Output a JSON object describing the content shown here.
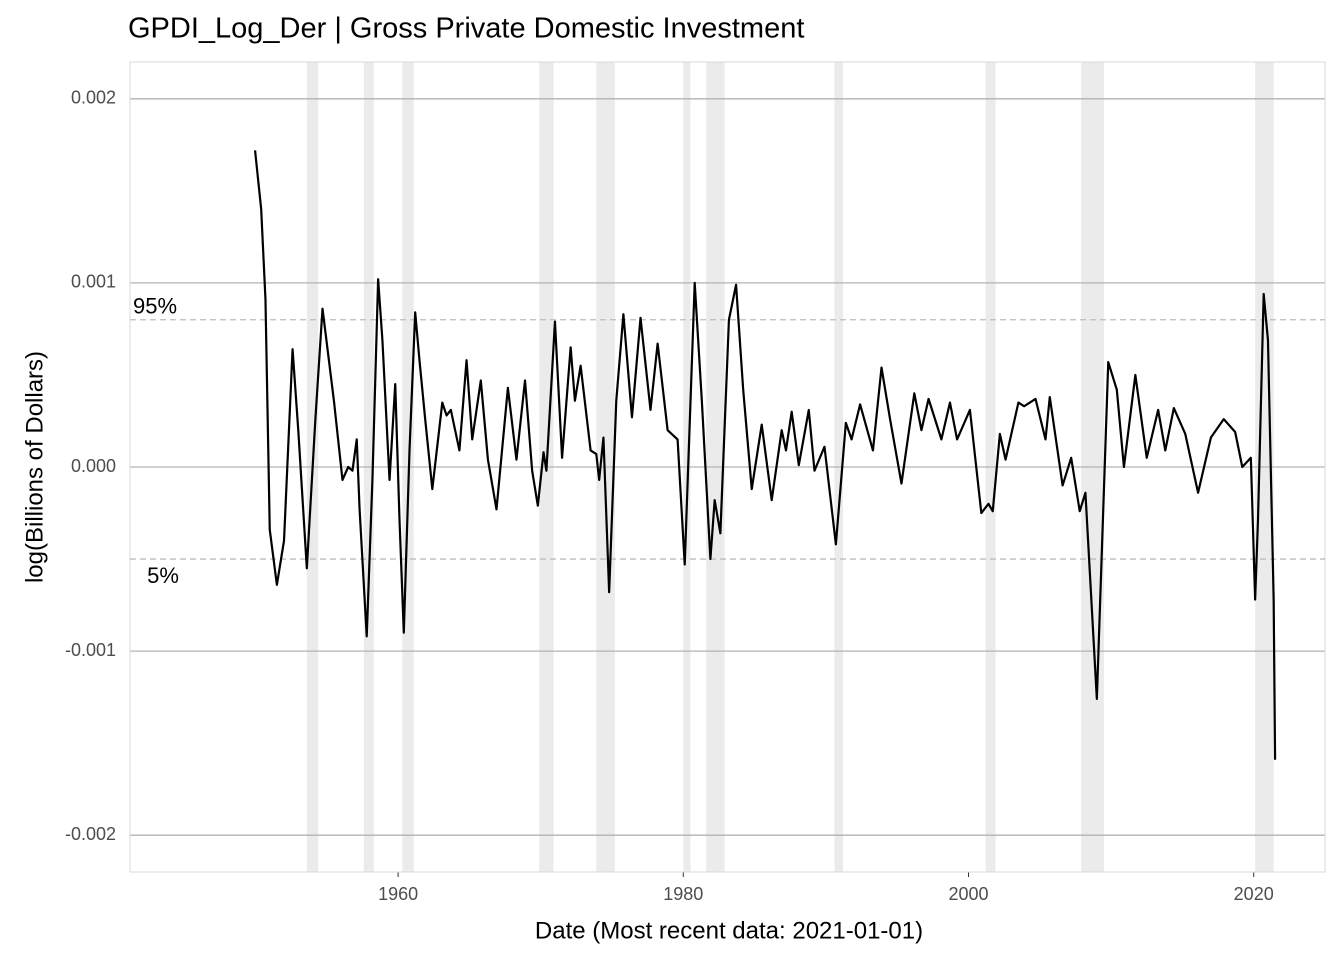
{
  "chart_data": {
    "type": "line",
    "title": "GPDI_Log_Der | Gross Private Domestic Investment",
    "x_label": "Date (Most recent data: 2021-01-01)",
    "y_label": "log(Billions of Dollars)",
    "color": "#000000",
    "x": [
      1949.97,
      1950.4,
      1950.7,
      1951.0,
      1951.5,
      1952.0,
      1952.6,
      1953.0,
      1953.6,
      1954.2,
      1954.7,
      1955.5,
      1956.1,
      1956.5,
      1956.8,
      1957.1,
      1957.3,
      1957.8,
      1958.2,
      1958.6,
      1958.9,
      1959.4,
      1959.8,
      1960.1,
      1960.4,
      1960.8,
      1961.2,
      1961.5,
      1961.9,
      1962.4,
      1963.1,
      1963.4,
      1963.7,
      1964.3,
      1964.8,
      1965.2,
      1965.8,
      1966.3,
      1966.9,
      1967.7,
      1968.3,
      1968.9,
      1969.4,
      1969.8,
      1970.2,
      1970.4,
      1971.0,
      1971.5,
      1972.1,
      1972.4,
      1972.8,
      1973.5,
      1973.9,
      1974.1,
      1974.4,
      1974.8,
      1975.3,
      1975.8,
      1976.4,
      1977.0,
      1977.7,
      1978.2,
      1978.9,
      1979.6,
      1980.1,
      1980.8,
      1981.3,
      1981.9,
      1982.2,
      1982.6,
      1983.2,
      1983.7,
      1984.2,
      1984.8,
      1985.5,
      1986.2,
      1986.9,
      1987.2,
      1987.6,
      1988.1,
      1988.8,
      1989.2,
      1989.9,
      1990.7,
      1991.4,
      1991.8,
      1992.4,
      1993.3,
      1993.9,
      1994.5,
      1995.3,
      1996.2,
      1996.7,
      1997.2,
      1998.1,
      1998.7,
      1999.2,
      2000.1,
      2000.9,
      2001.4,
      2001.7,
      2002.2,
      2002.6,
      2003.5,
      2003.9,
      2004.7,
      2005.4,
      2005.7,
      2006.6,
      2007.2,
      2007.8,
      2008.2,
      2009.0,
      2009.8,
      2010.4,
      2010.9,
      2011.7,
      2012.5,
      2013.3,
      2013.8,
      2014.4,
      2015.2,
      2016.1,
      2017.0,
      2017.9,
      2018.7,
      2019.2,
      2019.8,
      2020.1,
      2020.3,
      2020.7,
      2021.0,
      2021.4,
      2021.5
    ],
    "values": [
      0.00172,
      0.0014,
      0.00091,
      -0.00034,
      -0.00064,
      -0.0004,
      0.00064,
      0.0002,
      -0.00055,
      0.00026,
      0.00086,
      0.00036,
      -7e-05,
      0.0,
      -2e-05,
      0.00015,
      -0.00023,
      -0.00092,
      -7e-05,
      0.00102,
      0.00069,
      -7e-05,
      0.00045,
      -0.00029,
      -0.0009,
      9e-05,
      0.00084,
      0.00058,
      0.00026,
      -0.00012,
      0.00035,
      0.00028,
      0.00031,
      9e-05,
      0.00058,
      0.00015,
      0.00047,
      4e-05,
      -0.00023,
      0.00043,
      4e-05,
      0.00047,
      -2e-05,
      -0.00021,
      8e-05,
      -2e-05,
      0.00079,
      5e-05,
      0.00065,
      0.00036,
      0.00055,
      9e-05,
      7e-05,
      -7e-05,
      0.00016,
      -0.00068,
      0.00036,
      0.00083,
      0.00027,
      0.00081,
      0.00031,
      0.00067,
      0.0002,
      0.00015,
      -0.00053,
      0.001,
      0.00036,
      -0.0005,
      -0.00018,
      -0.00036,
      0.0008,
      0.00099,
      0.00042,
      -0.00012,
      0.00023,
      -0.00018,
      0.0002,
      9e-05,
      0.0003,
      1e-05,
      0.00031,
      -2e-05,
      0.00011,
      -0.00042,
      0.00024,
      0.00015,
      0.00034,
      9e-05,
      0.00054,
      0.00026,
      -9e-05,
      0.0004,
      0.0002,
      0.00037,
      0.00015,
      0.00035,
      0.00015,
      0.00031,
      -0.00025,
      -0.0002,
      -0.00024,
      0.00018,
      4e-05,
      0.00035,
      0.00033,
      0.00037,
      0.00015,
      0.00038,
      -0.0001,
      5e-05,
      -0.00024,
      -0.00014,
      -0.00126,
      0.00057,
      0.00042,
      0.0,
      0.0005,
      5e-05,
      0.00031,
      9e-05,
      0.00032,
      0.00018,
      -0.00014,
      0.00016,
      0.00026,
      0.00019,
      0.0,
      5e-05,
      -0.00072,
      -0.00029,
      0.00094,
      0.00069,
      -0.00072,
      -0.00159
    ],
    "shaded_periods": [
      [
        1953.6,
        1954.4
      ],
      [
        1957.6,
        1958.3
      ],
      [
        1960.3,
        1961.1
      ],
      [
        1969.9,
        1970.9
      ],
      [
        1973.9,
        1975.2
      ],
      [
        1980.0,
        1980.5
      ],
      [
        1981.6,
        1982.9
      ],
      [
        1990.6,
        1991.2
      ],
      [
        2001.2,
        2001.9
      ],
      [
        2007.9,
        2009.5
      ],
      [
        2020.1,
        2021.4
      ]
    ],
    "shade_color": "#ebebeb",
    "reference_lines": [
      {
        "value": 0.0008,
        "label": "95%"
      },
      {
        "value": -0.0005,
        "label": "5%"
      }
    ],
    "xlim": [
      1941.2,
      2025.0
    ],
    "ylim": [
      -0.0022,
      0.0022
    ],
    "xticks": [
      1960,
      1980,
      2000,
      2020
    ],
    "yticks": [
      -0.002,
      -0.001,
      {
        "value": 0,
        "label": "0.000"
      },
      0.001,
      0.002
    ],
    "grid": true
  }
}
